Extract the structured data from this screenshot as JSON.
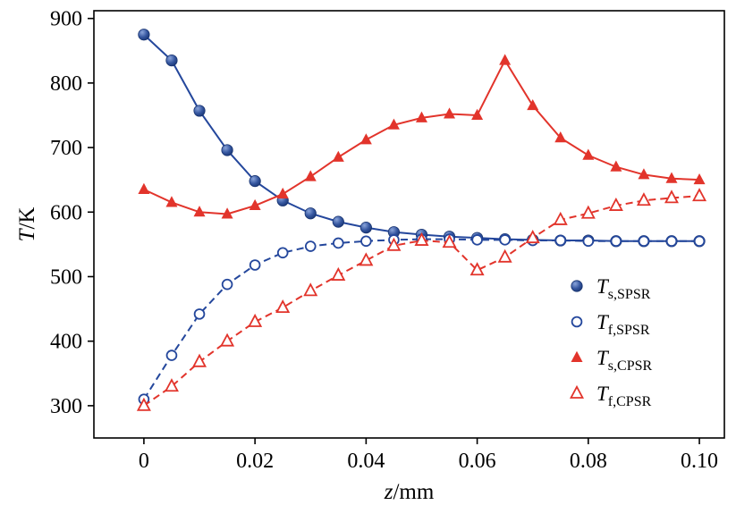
{
  "figure": {
    "background": "#ffffff",
    "frame_color": "#000000"
  },
  "chart_data": {
    "type": "line",
    "title": "",
    "xlabel": {
      "italic": "z",
      "rest": "/mm"
    },
    "ylabel": {
      "italic": "T",
      "rest": "/K"
    },
    "xlim": [
      -0.009,
      0.1045
    ],
    "ylim": [
      250,
      912
    ],
    "grid": false,
    "legend_position": "lower right",
    "xticks": [
      0,
      0.02,
      0.04,
      0.06,
      0.08,
      0.1
    ],
    "xtick_labels": [
      "0",
      "0.02",
      "0.04",
      "0.06",
      "0.08",
      "0.10"
    ],
    "yticks": [
      300,
      400,
      500,
      600,
      700,
      800,
      900
    ],
    "ytick_labels": [
      "300",
      "400",
      "500",
      "600",
      "700",
      "800",
      "900"
    ],
    "x": [
      0,
      0.005,
      0.01,
      0.015,
      0.02,
      0.025,
      0.03,
      0.035,
      0.04,
      0.045,
      0.05,
      0.055,
      0.06,
      0.065,
      0.07,
      0.075,
      0.08,
      0.085,
      0.09,
      0.095,
      0.1
    ],
    "series": [
      {
        "name": "Ts_SPSR",
        "legend_main": "T",
        "legend_sub": "s,SPSR",
        "color": "#24479c",
        "line_style": "solid",
        "marker": "circle-filled",
        "values": [
          875,
          835,
          757,
          696,
          648,
          618,
          598,
          585,
          576,
          569,
          565,
          562,
          560,
          558,
          557,
          556,
          556,
          555,
          555,
          555,
          555
        ]
      },
      {
        "name": "Tf_SPSR",
        "legend_main": "T",
        "legend_sub": "f,SPSR",
        "color": "#24479c",
        "line_style": "dashed",
        "marker": "circle-open",
        "values": [
          310,
          378,
          442,
          488,
          518,
          537,
          547,
          552,
          555,
          557,
          558,
          558,
          557,
          557,
          556,
          556,
          555,
          555,
          555,
          555,
          555
        ]
      },
      {
        "name": "Ts_CPSR",
        "legend_main": "T",
        "legend_sub": "s,CPSR",
        "color": "#e2342b",
        "line_style": "solid",
        "marker": "triangle-filled",
        "values": [
          635,
          615,
          600,
          597,
          610,
          628,
          655,
          685,
          712,
          735,
          746,
          752,
          750,
          835,
          765,
          715,
          688,
          670,
          658,
          652,
          650
        ]
      },
      {
        "name": "Tf_CPSR",
        "legend_main": "T",
        "legend_sub": "f,CPSR",
        "color": "#e2342b",
        "line_style": "dashed",
        "marker": "triangle-open",
        "values": [
          300,
          330,
          368,
          400,
          430,
          452,
          478,
          502,
          525,
          548,
          556,
          553,
          510,
          530,
          560,
          588,
          598,
          610,
          618,
          622,
          625
        ]
      }
    ]
  }
}
